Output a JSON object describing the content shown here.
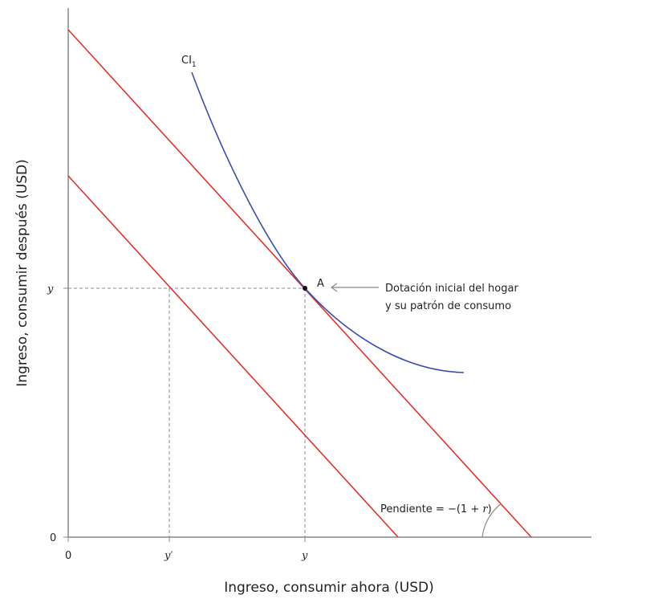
{
  "axes": {
    "x_label": "Ingreso, consumir ahora (USD)",
    "y_label": "Ingreso, consumir después (USD)",
    "x_ticks": [
      "0",
      "y′",
      "y"
    ],
    "y_ticks": [
      "0",
      "y"
    ]
  },
  "curve_label": {
    "main": "CI",
    "sub": "1"
  },
  "point_label": "A",
  "annotation": {
    "line1": "Dotación inicial del hogar",
    "line2": "y su patrón de consumo"
  },
  "slope_label": {
    "text": "Pendiente = −(1 + ",
    "var": "r",
    "close": ")"
  },
  "colors": {
    "budget_line": "#e2322b",
    "indifference_curve": "#3b4cb0",
    "axis": "#888888"
  }
}
